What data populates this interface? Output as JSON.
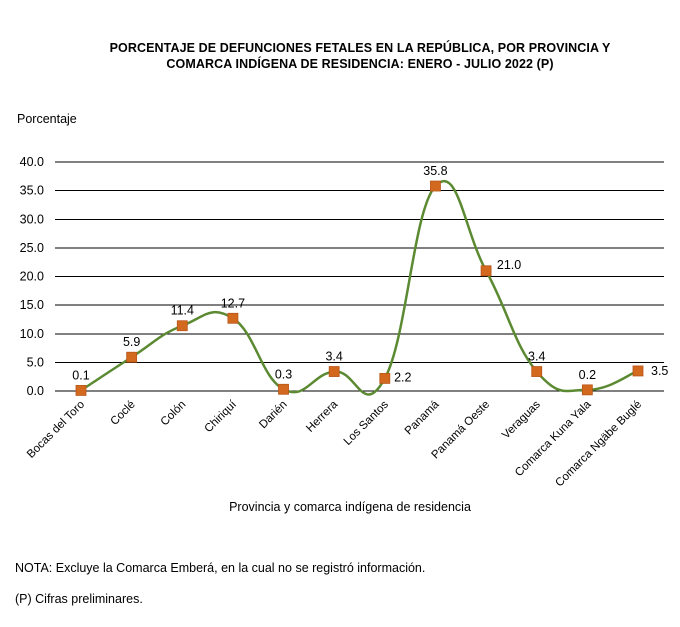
{
  "colors": {
    "line": "#5b8a32",
    "marker": "#d2691e",
    "marker_stroke": "#b8561a",
    "grid": "#000000"
  },
  "chart_data": {
    "type": "line",
    "title_line1": "PORCENTAJE  DE DEFUNCIONES  FETALES EN LA REPÚBLICA, POR PROVINCIA Y",
    "title_line2": "COMARCA  INDÍGENA DE RESIDENCIA:  ENERO  - JULIO 2022 (P)",
    "ylabel": "Porcentaje",
    "xlabel": "Provincia  y comarca indígena de residencia",
    "ylim": [
      0,
      40
    ],
    "yticks": [
      "0.0",
      "5.0",
      "10.0",
      "15.0",
      "20.0",
      "25.0",
      "30.0",
      "35.0",
      "40.0"
    ],
    "ytick_values": [
      0,
      5,
      10,
      15,
      20,
      25,
      30,
      35,
      40
    ],
    "grid": true,
    "smooth": true,
    "categories": [
      "Bocas del Toro",
      "Coclé",
      "Colón",
      "Chiriquí",
      "Darién",
      "Herrera",
      "Los Santos",
      "Panamá",
      "Panamá Oeste",
      "Veraguas",
      "Comarca Kuna Yala",
      "Comarca Ngäbe Buglé"
    ],
    "values": [
      0.1,
      5.9,
      11.4,
      12.7,
      0.3,
      3.4,
      2.2,
      35.8,
      21.0,
      3.4,
      0.2,
      3.5
    ],
    "data_labels": [
      "0.1",
      "5.9",
      "11.4",
      "12.7",
      "0.3",
      "3.4",
      "2.2",
      "35.8",
      "21.0",
      "3.4",
      "0.2",
      "3.5"
    ]
  },
  "notes": {
    "note1": "NOTA: Excluye la Comarca Emberá, en la cual no se registró información.",
    "note2": "(P) Cifras  preliminares."
  }
}
